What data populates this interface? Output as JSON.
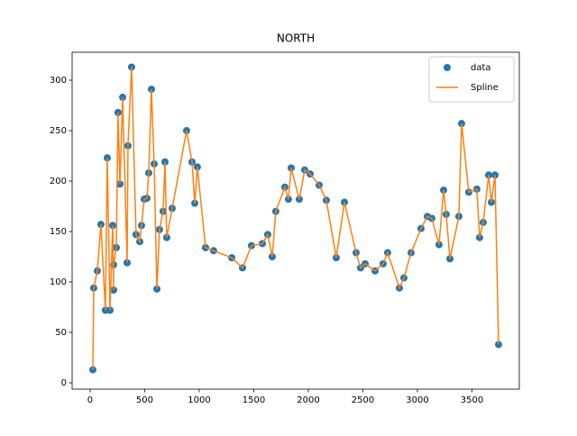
{
  "chart_data": {
    "type": "line",
    "title": "NORTH",
    "x": [
      25,
      33,
      66,
      99,
      140,
      157,
      182,
      207,
      215,
      215,
      240,
      256,
      273,
      298,
      339,
      347,
      380,
      421,
      455,
      471,
      496,
      521,
      537,
      562,
      587,
      612,
      636,
      669,
      686,
      702,
      752,
      884,
      934,
      959,
      983,
      1058,
      1132,
      1298,
      1397,
      1479,
      1579,
      1628,
      1669,
      1702,
      1785,
      1818,
      1843,
      1917,
      1967,
      2017,
      2099,
      2165,
      2256,
      2331,
      2438,
      2479,
      2521,
      2612,
      2686,
      2727,
      2835,
      2876,
      2942,
      3033,
      3091,
      3132,
      3198,
      3240,
      3264,
      3298,
      3380,
      3405,
      3471,
      3545,
      3570,
      3603,
      3653,
      3678,
      3711,
      3744
    ],
    "series": [
      {
        "name": "data",
        "mode": "markers",
        "color": "#1f77b4",
        "values": [
          13,
          94,
          111,
          157,
          72,
          223,
          72,
          156,
          92,
          117,
          134,
          268,
          197,
          283,
          119,
          235,
          313,
          147,
          140,
          156,
          182,
          183,
          208,
          291,
          217,
          93,
          152,
          170,
          219,
          144,
          173,
          250,
          219,
          178,
          214,
          134,
          131,
          124,
          114,
          136,
          138,
          147,
          125,
          170,
          194,
          182,
          213,
          182,
          211,
          207,
          196,
          181,
          124,
          179,
          129,
          114,
          118,
          111,
          118,
          129,
          94,
          104,
          129,
          153,
          165,
          163,
          137,
          191,
          167,
          123,
          165,
          257,
          189,
          192,
          144,
          159,
          206,
          179,
          206,
          38
        ]
      },
      {
        "name": "Spline",
        "mode": "lines",
        "color": "#ff7f0e",
        "values": [
          13,
          94,
          111,
          157,
          72,
          223,
          72,
          156,
          92,
          117,
          134,
          268,
          197,
          283,
          119,
          235,
          313,
          147,
          140,
          156,
          182,
          183,
          208,
          291,
          217,
          93,
          152,
          170,
          219,
          144,
          173,
          250,
          219,
          178,
          214,
          134,
          131,
          124,
          114,
          136,
          138,
          147,
          125,
          170,
          194,
          182,
          213,
          182,
          211,
          207,
          196,
          181,
          124,
          179,
          129,
          114,
          118,
          111,
          118,
          129,
          94,
          104,
          129,
          153,
          165,
          163,
          137,
          191,
          167,
          123,
          165,
          257,
          189,
          192,
          144,
          159,
          206,
          179,
          206,
          38
        ]
      }
    ],
    "xlim": [
      -165,
      3934
    ],
    "ylim": [
      -6.25,
      327.7
    ],
    "xticks": [
      0,
      500,
      1000,
      1500,
      2000,
      2500,
      3000,
      3500
    ],
    "yticks": [
      0,
      50,
      100,
      150,
      200,
      250,
      300
    ],
    "grid": false,
    "legend": "upper right"
  }
}
